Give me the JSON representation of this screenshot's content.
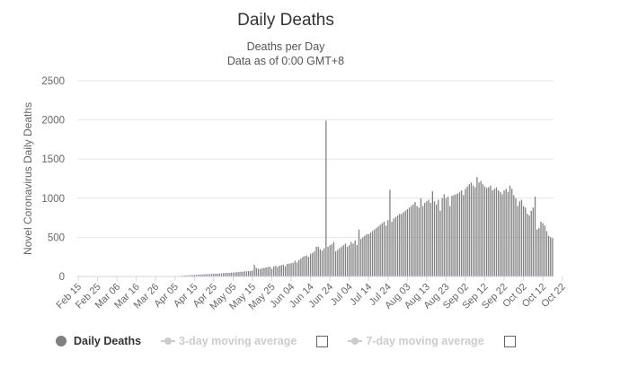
{
  "title": "Daily Deaths",
  "subtitle_line1": "Deaths per Day",
  "subtitle_line2": "Data as of 0:00 GMT+8",
  "legend": {
    "daily_deaths": "Daily Deaths",
    "moving_3": "3-day moving average",
    "moving_7": "7-day moving average"
  },
  "colors": {
    "bar": "#808080",
    "axis_text": "#666666",
    "grid": "#e6e6e6",
    "legend_inactive": "#cccccc"
  },
  "chart_data": {
    "type": "bar",
    "title": "Daily Deaths",
    "subtitle": "Deaths per Day",
    "xlabel": "",
    "ylabel": "Novel Coronavirus Daily Deaths",
    "ylim": [
      0,
      2500
    ],
    "yticks": [
      0,
      500,
      1000,
      1500,
      2000,
      2500
    ],
    "grid": "horizontal",
    "legend_position": "bottom-left",
    "x_start": "Feb 15",
    "xticks": [
      "Feb 15",
      "Feb 25",
      "Mar 06",
      "Mar 16",
      "Mar 26",
      "Apr 05",
      "Apr 15",
      "Apr 25",
      "May 05",
      "May 15",
      "May 25",
      "Jun 04",
      "Jun 14",
      "Jun 24",
      "Jul 04",
      "Jul 14",
      "Jul 24",
      "Aug 03",
      "Aug 13",
      "Aug 23",
      "Sep 02",
      "Sep 12",
      "Sep 22",
      "Oct 02",
      "Oct 12",
      "Oct 22"
    ],
    "series": [
      {
        "name": "Daily Deaths",
        "values": [
          0,
          0,
          0,
          0,
          0,
          0,
          0,
          0,
          0,
          0,
          0,
          0,
          0,
          0,
          0,
          0,
          0,
          0,
          0,
          0,
          0,
          0,
          0,
          0,
          0,
          0,
          0,
          0,
          0,
          0,
          0,
          0,
          0,
          0,
          0,
          0,
          0,
          0,
          0,
          0,
          0,
          0,
          0,
          0,
          0,
          0,
          0,
          0,
          0,
          0,
          2,
          4,
          6,
          8,
          10,
          12,
          14,
          15,
          16,
          18,
          20,
          22,
          22,
          24,
          25,
          27,
          28,
          30,
          30,
          32,
          34,
          35,
          36,
          38,
          40,
          42,
          44,
          45,
          46,
          48,
          50,
          52,
          55,
          58,
          60,
          62,
          64,
          66,
          68,
          70,
          75,
          150,
          110,
          100,
          95,
          105,
          110,
          115,
          120,
          125,
          100,
          130,
          135,
          120,
          140,
          145,
          150,
          130,
          160,
          165,
          170,
          175,
          200,
          180,
          210,
          230,
          250,
          260,
          270,
          250,
          290,
          300,
          320,
          380,
          380,
          350,
          330,
          360,
          1990,
          380,
          400,
          410,
          440,
          320,
          340,
          360,
          380,
          400,
          420,
          380,
          400,
          440,
          420,
          460,
          400,
          600,
          480,
          500,
          520,
          540,
          540,
          560,
          580,
          600,
          620,
          640,
          660,
          680,
          700,
          650,
          720,
          1110,
          700,
          740,
          760,
          780,
          800,
          800,
          820,
          840,
          860,
          880,
          900,
          920,
          950,
          900,
          880,
          1000,
          900,
          940,
          960,
          980,
          940,
          1090,
          960,
          920,
          980,
          840,
          1000,
          1050,
          1000,
          1020,
          900,
          1030,
          1040,
          1050,
          1060,
          1080,
          1100,
          1040,
          1120,
          1150,
          1180,
          1200,
          1160,
          1140,
          1270,
          1200,
          1220,
          1180,
          1150,
          1130,
          1140,
          1160,
          1100,
          1120,
          1140,
          1100,
          1080,
          1050,
          1100,
          1120,
          1080,
          1160,
          1120,
          1040,
          1000,
          900,
          960,
          980,
          900,
          880,
          800,
          780,
          840,
          880,
          1020,
          600,
          620,
          700,
          680,
          650,
          580,
          520,
          500,
          490
        ]
      }
    ]
  }
}
